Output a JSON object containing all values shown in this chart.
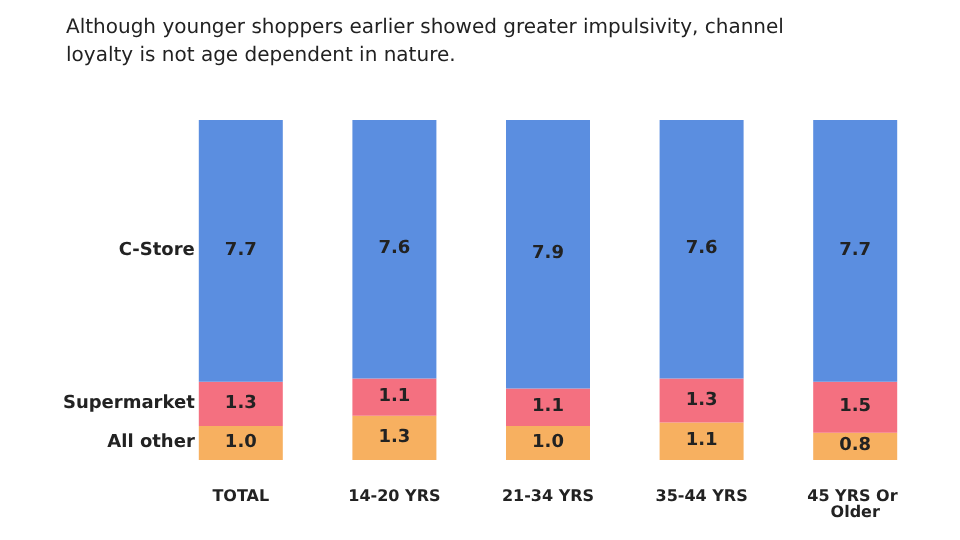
{
  "chart_data": {
    "type": "bar",
    "title": "Although younger shoppers earlier showed greater impulsivity, channel\nloyalty is not age dependent in nature.",
    "categories": [
      "TOTAL",
      "14-20 YRS",
      "21-34 YRS",
      "35-44 YRS",
      "45 YRS Or Older"
    ],
    "stacked": true,
    "series": [
      {
        "name": "All other",
        "color": "#f7b060",
        "values": [
          1.0,
          1.3,
          1.0,
          1.1,
          0.8
        ],
        "value_labels": [
          "1.0",
          "1.3",
          "1.0",
          "1.1",
          "0.8"
        ]
      },
      {
        "name": "Supermarket",
        "color": "#f47080",
        "values": [
          1.3,
          1.1,
          1.1,
          1.3,
          1.5
        ],
        "value_labels": [
          "1.3",
          "1.1",
          "1.1",
          "1.3",
          "1.5"
        ]
      },
      {
        "name": "C-Store",
        "color": "#5b8ee0",
        "values": [
          7.7,
          7.6,
          7.9,
          7.6,
          7.7
        ],
        "value_labels": [
          "7.7",
          "7.6",
          "7.9",
          "7.6",
          "7.7"
        ]
      }
    ]
  }
}
